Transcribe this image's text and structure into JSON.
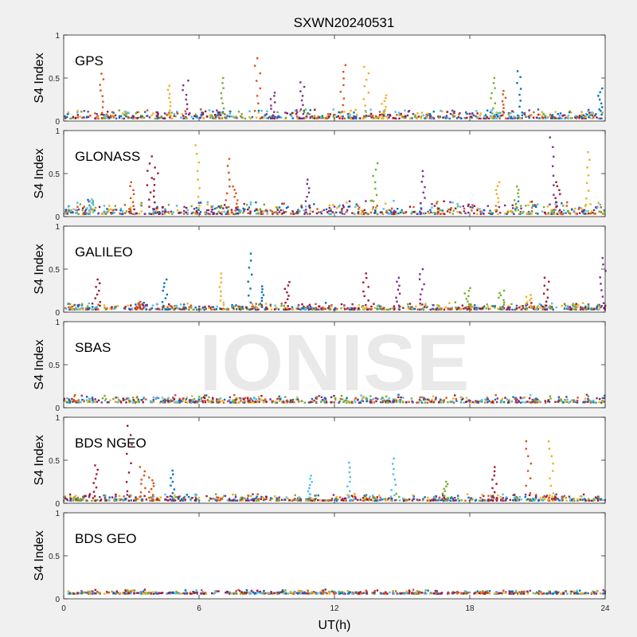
{
  "figure": {
    "title": "SXWN20240531",
    "watermark": "IONISE",
    "xlabel": "UT(h)",
    "ylabel": "S4 Index",
    "xlim": [
      0,
      24
    ],
    "ylim": [
      0,
      1
    ],
    "xticks": [
      "0",
      "6",
      "12",
      "18",
      "24"
    ],
    "yticks": [
      "0",
      "0.5",
      "1"
    ],
    "colors": [
      "#0072bd",
      "#d95319",
      "#edb120",
      "#7e2f8e",
      "#77ac30",
      "#4dbeee",
      "#a2142f"
    ]
  },
  "chart_data": [
    {
      "type": "scatter",
      "panel": "GPS",
      "xlabel": "",
      "ylabel": "S4 Index",
      "xlim": [
        0,
        24
      ],
      "ylim": [
        0,
        1
      ],
      "baseline_range": [
        0.03,
        0.15
      ],
      "spikes": [
        {
          "x": 1.7,
          "y": 0.55,
          "c": 1
        },
        {
          "x": 4.7,
          "y": 0.41,
          "c": 2
        },
        {
          "x": 5.4,
          "y": 0.47,
          "c": 3
        },
        {
          "x": 7.1,
          "y": 0.5,
          "c": 4
        },
        {
          "x": 8.6,
          "y": 0.73,
          "c": 1
        },
        {
          "x": 9.3,
          "y": 0.33,
          "c": 3
        },
        {
          "x": 10.6,
          "y": 0.45,
          "c": 3
        },
        {
          "x": 12.4,
          "y": 0.65,
          "c": 1
        },
        {
          "x": 13.4,
          "y": 0.63,
          "c": 2
        },
        {
          "x": 14.2,
          "y": 0.3,
          "c": 2
        },
        {
          "x": 19.0,
          "y": 0.5,
          "c": 4
        },
        {
          "x": 19.5,
          "y": 0.35,
          "c": 1
        },
        {
          "x": 20.2,
          "y": 0.58,
          "c": 0
        },
        {
          "x": 23.8,
          "y": 0.38,
          "c": 0
        }
      ]
    },
    {
      "type": "scatter",
      "panel": "GLONASS",
      "xlabel": "",
      "ylabel": "S4 Index",
      "xlim": [
        0,
        24
      ],
      "ylim": [
        0,
        1
      ],
      "baseline_range": [
        0.03,
        0.2
      ],
      "spikes": [
        {
          "x": 1.2,
          "y": 0.2,
          "c": 5
        },
        {
          "x": 3.0,
          "y": 0.4,
          "c": 1
        },
        {
          "x": 3.8,
          "y": 0.7,
          "c": 6
        },
        {
          "x": 4.1,
          "y": 0.57,
          "c": 6
        },
        {
          "x": 5.9,
          "y": 0.83,
          "c": 2
        },
        {
          "x": 7.3,
          "y": 0.67,
          "c": 1
        },
        {
          "x": 7.6,
          "y": 0.35,
          "c": 1
        },
        {
          "x": 10.8,
          "y": 0.43,
          "c": 3
        },
        {
          "x": 13.8,
          "y": 0.62,
          "c": 4
        },
        {
          "x": 15.9,
          "y": 0.53,
          "c": 3
        },
        {
          "x": 19.2,
          "y": 0.4,
          "c": 2
        },
        {
          "x": 20.1,
          "y": 0.35,
          "c": 4
        },
        {
          "x": 21.6,
          "y": 0.92,
          "c": 3
        },
        {
          "x": 21.9,
          "y": 0.4,
          "c": 6
        },
        {
          "x": 23.2,
          "y": 0.75,
          "c": 2
        }
      ]
    },
    {
      "type": "scatter",
      "panel": "GALILEO",
      "xlabel": "",
      "ylabel": "S4 Index",
      "xlim": [
        0,
        24
      ],
      "ylim": [
        0,
        1
      ],
      "baseline_range": [
        0.03,
        0.12
      ],
      "spikes": [
        {
          "x": 1.5,
          "y": 0.38,
          "c": 6
        },
        {
          "x": 3.3,
          "y": 0.12,
          "c": 1
        },
        {
          "x": 4.5,
          "y": 0.38,
          "c": 0
        },
        {
          "x": 7.0,
          "y": 0.45,
          "c": 2
        },
        {
          "x": 8.3,
          "y": 0.68,
          "c": 0
        },
        {
          "x": 8.8,
          "y": 0.3,
          "c": 0
        },
        {
          "x": 9.9,
          "y": 0.35,
          "c": 6
        },
        {
          "x": 13.4,
          "y": 0.45,
          "c": 6
        },
        {
          "x": 14.8,
          "y": 0.4,
          "c": 3
        },
        {
          "x": 15.9,
          "y": 0.5,
          "c": 3
        },
        {
          "x": 17.9,
          "y": 0.28,
          "c": 4
        },
        {
          "x": 19.4,
          "y": 0.25,
          "c": 4
        },
        {
          "x": 20.6,
          "y": 0.2,
          "c": 2
        },
        {
          "x": 21.4,
          "y": 0.4,
          "c": 6
        },
        {
          "x": 23.9,
          "y": 0.63,
          "c": 3
        }
      ]
    },
    {
      "type": "scatter",
      "panel": "SBAS",
      "xlabel": "",
      "ylabel": "S4 Index",
      "xlim": [
        0,
        24
      ],
      "ylim": [
        0,
        1
      ],
      "baseline_range": [
        0.06,
        0.16
      ],
      "spikes": []
    },
    {
      "type": "scatter",
      "panel": "BDS NGEO",
      "xlabel": "",
      "ylabel": "S4 Index",
      "xlim": [
        0,
        24
      ],
      "ylim": [
        0,
        1
      ],
      "baseline_range": [
        0.03,
        0.12
      ],
      "spikes": [
        {
          "x": 1.4,
          "y": 0.44,
          "c": 6
        },
        {
          "x": 2.9,
          "y": 0.9,
          "c": 6
        },
        {
          "x": 3.5,
          "y": 0.42,
          "c": 1
        },
        {
          "x": 3.9,
          "y": 0.3,
          "c": 1
        },
        {
          "x": 4.8,
          "y": 0.38,
          "c": 0
        },
        {
          "x": 10.9,
          "y": 0.32,
          "c": 5
        },
        {
          "x": 12.7,
          "y": 0.47,
          "c": 5
        },
        {
          "x": 14.6,
          "y": 0.52,
          "c": 5
        },
        {
          "x": 16.9,
          "y": 0.25,
          "c": 4
        },
        {
          "x": 19.1,
          "y": 0.42,
          "c": 6
        },
        {
          "x": 20.6,
          "y": 0.72,
          "c": 1
        },
        {
          "x": 21.6,
          "y": 0.72,
          "c": 2
        }
      ]
    },
    {
      "type": "scatter",
      "panel": "BDS GEO",
      "xlabel": "UT(h)",
      "ylabel": "S4 Index",
      "xlim": [
        0,
        24
      ],
      "ylim": [
        0,
        1
      ],
      "baseline_range": [
        0.06,
        0.11
      ],
      "spikes": []
    }
  ]
}
